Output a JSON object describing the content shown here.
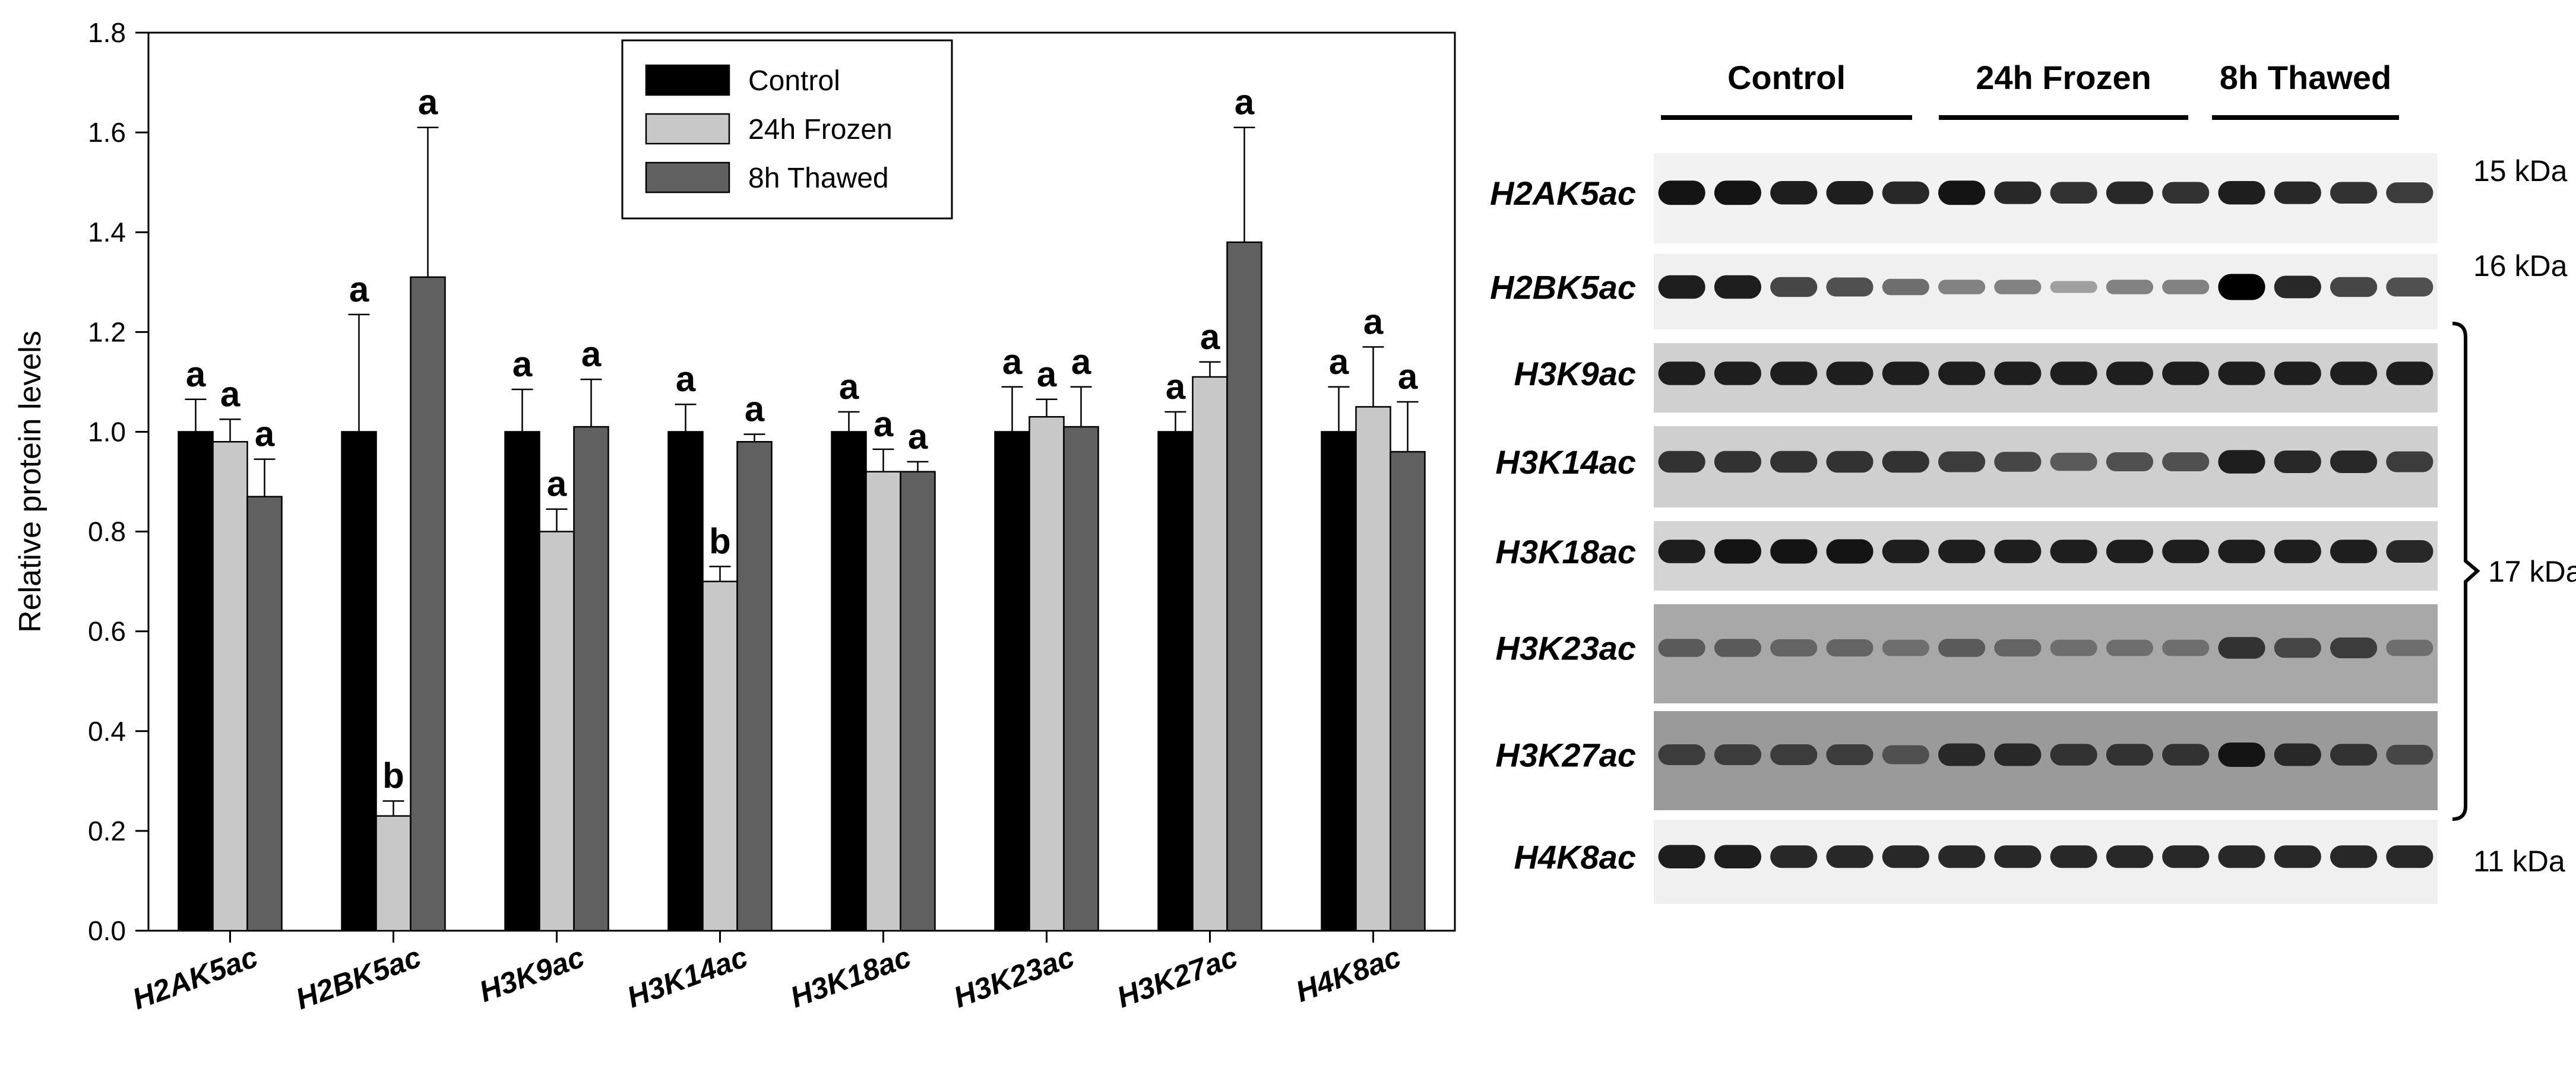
{
  "chart_data": {
    "type": "bar",
    "ylabel": "Relative protein levels",
    "ylim": [
      0,
      1.8
    ],
    "yticks": [
      "0.0",
      "0.2",
      "0.4",
      "0.6",
      "0.8",
      "1.0",
      "1.2",
      "1.4",
      "1.6",
      "1.8"
    ],
    "categories": [
      "H2AK5ac",
      "H2BK5ac",
      "H3K9ac",
      "H3K14ac",
      "H3K18ac",
      "H3K23ac",
      "H3K27ac",
      "H4K8ac"
    ],
    "legend_position": "top-center",
    "series": [
      {
        "name": "Control",
        "color": "#000000",
        "values": [
          1.0,
          1.0,
          1.0,
          1.0,
          1.0,
          1.0,
          1.0,
          1.0
        ],
        "errors": [
          0.065,
          0.235,
          0.085,
          0.055,
          0.04,
          0.09,
          0.04,
          0.09
        ],
        "letters": [
          "a",
          "a",
          "a",
          "a",
          "a",
          "a",
          "a",
          "a"
        ]
      },
      {
        "name": "24h Frozen",
        "color": "#c8c8c8",
        "values": [
          0.98,
          0.23,
          0.8,
          0.7,
          0.92,
          1.03,
          1.11,
          1.05
        ],
        "errors": [
          0.045,
          0.03,
          0.045,
          0.03,
          0.045,
          0.035,
          0.03,
          0.12
        ],
        "letters": [
          "a",
          "b",
          "a",
          "b",
          "a",
          "a",
          "a",
          "a"
        ]
      },
      {
        "name": "8h Thawed",
        "color": "#606060",
        "values": [
          0.87,
          1.31,
          1.01,
          0.98,
          0.92,
          1.01,
          1.38,
          0.96
        ],
        "errors": [
          0.075,
          0.3,
          0.095,
          0.015,
          0.02,
          0.08,
          0.23,
          0.1
        ],
        "letters": [
          "a",
          "a",
          "a",
          "a",
          "a",
          "a",
          "a",
          "a"
        ]
      }
    ]
  },
  "blot": {
    "groups": [
      "Control",
      "24h Frozen",
      "8h Thawed"
    ],
    "bands": [
      {
        "label": "H2AK5ac",
        "intensity": [
          0.9,
          0.9,
          0.85,
          0.85,
          0.8,
          0.9,
          0.8,
          0.75,
          0.8,
          0.75,
          0.85,
          0.8,
          0.75,
          0.7
        ],
        "bg": "#f2f2f2"
      },
      {
        "label": "H2BK5ac",
        "intensity": [
          0.85,
          0.85,
          0.65,
          0.6,
          0.45,
          0.35,
          0.35,
          0.2,
          0.35,
          0.35,
          1.0,
          0.8,
          0.65,
          0.6
        ],
        "bg": "#f0f0f0"
      },
      {
        "label": "H3K9ac",
        "intensity": [
          0.85,
          0.85,
          0.85,
          0.85,
          0.85,
          0.85,
          0.85,
          0.85,
          0.85,
          0.85,
          0.85,
          0.85,
          0.85,
          0.85
        ],
        "bg": "#d0d0d0"
      },
      {
        "label": "H3K14ac",
        "intensity": [
          0.75,
          0.75,
          0.75,
          0.75,
          0.75,
          0.7,
          0.65,
          0.55,
          0.6,
          0.6,
          0.85,
          0.8,
          0.8,
          0.7
        ],
        "bg": "#cfcfcf"
      },
      {
        "label": "H3K18ac",
        "intensity": [
          0.85,
          0.9,
          0.9,
          0.9,
          0.85,
          0.85,
          0.85,
          0.85,
          0.85,
          0.85,
          0.85,
          0.85,
          0.85,
          0.8
        ],
        "bg": "#d4d4d4"
      },
      {
        "label": "H3K23ac",
        "intensity": [
          0.55,
          0.55,
          0.5,
          0.5,
          0.45,
          0.55,
          0.5,
          0.45,
          0.45,
          0.45,
          0.75,
          0.65,
          0.7,
          0.45
        ],
        "bg": "#a8a8a8"
      },
      {
        "label": "H3K27ac",
        "intensity": [
          0.7,
          0.7,
          0.7,
          0.7,
          0.6,
          0.8,
          0.8,
          0.75,
          0.75,
          0.75,
          0.9,
          0.8,
          0.75,
          0.65
        ],
        "bg": "#9a9a9a"
      },
      {
        "label": "H4K8ac",
        "intensity": [
          0.85,
          0.85,
          0.8,
          0.8,
          0.8,
          0.8,
          0.8,
          0.8,
          0.8,
          0.8,
          0.8,
          0.8,
          0.8,
          0.8
        ],
        "bg": "#f0f0f0"
      }
    ],
    "kda_labels": [
      "15 kDa",
      "16 kDa",
      "17 kDa",
      "11 kDa"
    ]
  }
}
